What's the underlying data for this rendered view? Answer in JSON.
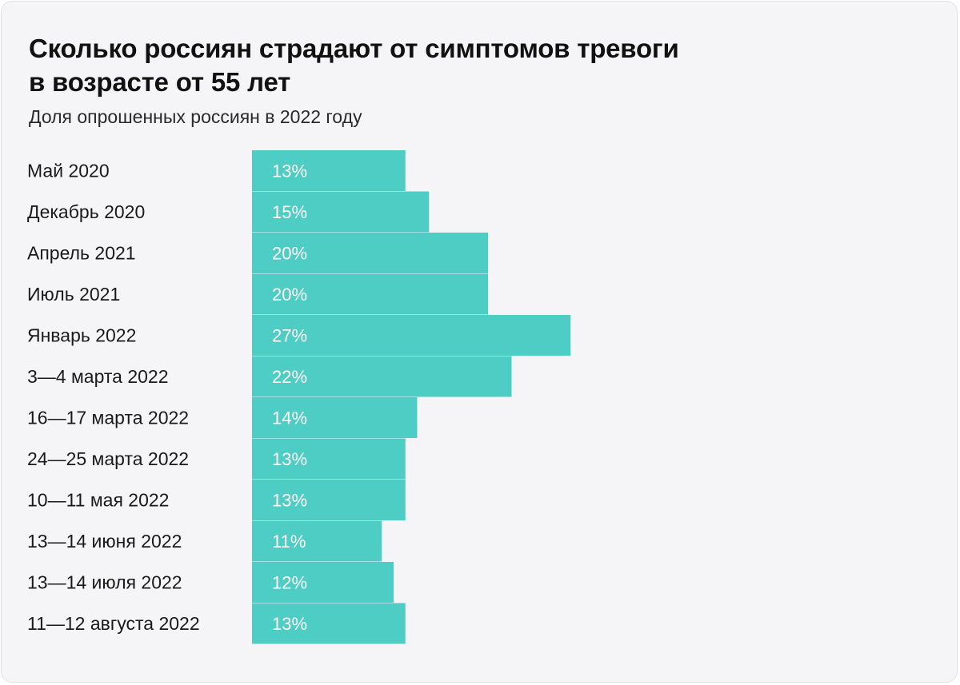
{
  "title_line1": "Сколько россиян страдают от симптомов тревоги",
  "title_line2": "в возрасте от 55 лет",
  "subtitle": "Доля опрошенных россиян в 2022 году",
  "colors": {
    "bar": "#4ecdc4",
    "background": "#f5f5f7",
    "bar_label": "#ffffff"
  },
  "chart_data": {
    "type": "bar",
    "orientation": "horizontal",
    "title": "Сколько россиян страдают от симптомов тревоги в возрасте от 55 лет",
    "subtitle": "Доля опрошенных россиян в 2022 году",
    "categories": [
      "Май 2020",
      "Декабрь 2020",
      "Апрель 2021",
      "Июль 2021",
      "Январь 2022",
      "3—4 марта 2022",
      "16—17 марта 2022",
      "24—25 марта 2022",
      "10—11 мая 2022",
      "13—14 июня 2022",
      "13—14 июля 2022",
      "11—12 августа 2022"
    ],
    "values": [
      13,
      15,
      20,
      20,
      27,
      22,
      14,
      13,
      13,
      11,
      12,
      13
    ],
    "value_labels": [
      "13%",
      "15%",
      "20%",
      "20%",
      "27%",
      "22%",
      "14%",
      "13%",
      "13%",
      "11%",
      "12%",
      "13%"
    ],
    "unit": "%",
    "xlabel": "",
    "ylabel": "",
    "grid": false,
    "legend": "none"
  }
}
